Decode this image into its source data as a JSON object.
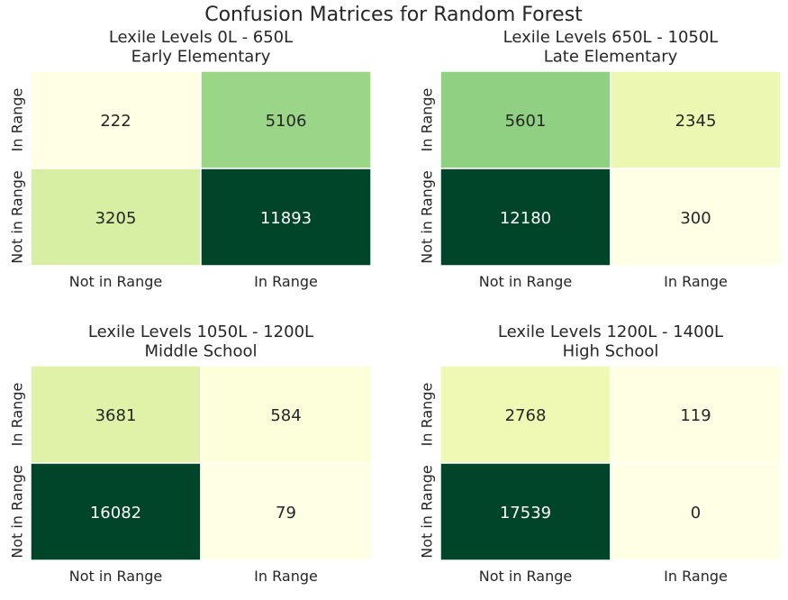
{
  "figure": {
    "title": "Confusion Matrices for Random Forest"
  },
  "chart_data": [
    {
      "type": "heatmap",
      "title": "Lexile Levels 0L - 650L\nEarly Elementary",
      "x_categories": [
        "Not in Range",
        "In Range"
      ],
      "y_categories": [
        "In Range",
        "Not in Range"
      ],
      "values": [
        [
          222,
          5106
        ],
        [
          3205,
          11893
        ]
      ],
      "colormap": "YlGn",
      "colorbar": false,
      "grid": false
    },
    {
      "type": "heatmap",
      "title": "Lexile Levels 650L - 1050L\nLate Elementary",
      "x_categories": [
        "Not in Range",
        "In Range"
      ],
      "y_categories": [
        "In Range",
        "Not in Range"
      ],
      "values": [
        [
          5601,
          2345
        ],
        [
          12180,
          300
        ]
      ],
      "colormap": "YlGn",
      "colorbar": false,
      "grid": false
    },
    {
      "type": "heatmap",
      "title": "Lexile Levels 1050L - 1200L\nMiddle School",
      "x_categories": [
        "Not in Range",
        "In Range"
      ],
      "y_categories": [
        "In Range",
        "Not in Range"
      ],
      "values": [
        [
          3681,
          584
        ],
        [
          16082,
          79
        ]
      ],
      "colormap": "YlGn",
      "colorbar": false,
      "grid": false
    },
    {
      "type": "heatmap",
      "title": "Lexile Levels 1200L - 1400L\nHigh School",
      "x_categories": [
        "Not in Range",
        "In Range"
      ],
      "y_categories": [
        "In Range",
        "Not in Range"
      ],
      "values": [
        [
          2768,
          119
        ],
        [
          17539,
          0
        ]
      ],
      "colormap": "YlGn",
      "colorbar": false,
      "grid": false
    }
  ]
}
